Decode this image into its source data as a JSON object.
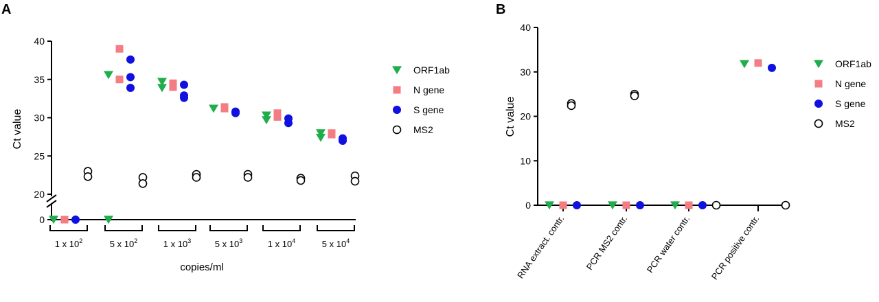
{
  "panels": {
    "a_label": "A",
    "b_label": "B"
  },
  "legend_entries": [
    "ORF1ab",
    "N gene",
    "S gene",
    "MS2"
  ],
  "colors": {
    "ORF1ab": "#1fae4b",
    "N gene": "#f47c83",
    "S gene": "#1010e0",
    "MS2": "#000000"
  },
  "chart_data": [
    {
      "type": "scatter",
      "panel": "A",
      "xlabel": "copies/ml",
      "ylabel": "Ct value",
      "categories": [
        {
          "base": "1 x 10",
          "exp": "2"
        },
        {
          "base": "5 x 10",
          "exp": "2"
        },
        {
          "base": "1 x 10",
          "exp": "3"
        },
        {
          "base": "5 x 10",
          "exp": "3"
        },
        {
          "base": "1 x 10",
          "exp": "4"
        },
        {
          "base": "5 x 10",
          "exp": "4"
        }
      ],
      "y_axis": {
        "broken": true,
        "lower_segment": {
          "ticks": [
            0
          ]
        },
        "upper_segment": {
          "range": [
            20,
            40
          ],
          "ticks": [
            20,
            25,
            30,
            35,
            40
          ]
        }
      },
      "series": [
        {
          "name": "ORF1ab",
          "marker": "triangle-down",
          "points": [
            [
              0,
              0
            ],
            [
              1,
              35.6
            ],
            [
              1,
              0
            ],
            [
              2,
              34.7
            ],
            [
              2,
              33.9
            ],
            [
              3,
              31.2
            ],
            [
              4,
              30.3
            ],
            [
              4,
              29.7
            ],
            [
              5,
              28.0
            ],
            [
              5,
              27.4
            ]
          ]
        },
        {
          "name": "N gene",
          "marker": "square",
          "points": [
            [
              0,
              0
            ],
            [
              1,
              39.0
            ],
            [
              1,
              35.0
            ],
            [
              2,
              34.5
            ],
            [
              2,
              34.0
            ],
            [
              3,
              31.4
            ],
            [
              3,
              31.2
            ],
            [
              4,
              30.6
            ],
            [
              4,
              30.1
            ],
            [
              5,
              28.0
            ],
            [
              5,
              27.8
            ]
          ]
        },
        {
          "name": "S gene",
          "marker": "circle",
          "points": [
            [
              0,
              0
            ],
            [
              1,
              37.6
            ],
            [
              1,
              35.3
            ],
            [
              1,
              33.9
            ],
            [
              2,
              34.3
            ],
            [
              2,
              32.9
            ],
            [
              2,
              32.6
            ],
            [
              3,
              30.8
            ],
            [
              3,
              30.6
            ],
            [
              4,
              29.9
            ],
            [
              4,
              29.3
            ],
            [
              5,
              27.3
            ],
            [
              5,
              27.0
            ]
          ]
        },
        {
          "name": "MS2",
          "marker": "open-circle",
          "points": [
            [
              0,
              23.0
            ],
            [
              0,
              22.3
            ],
            [
              1,
              22.2
            ],
            [
              1,
              21.4
            ],
            [
              2,
              22.6
            ],
            [
              2,
              22.2
            ],
            [
              3,
              22.6
            ],
            [
              3,
              22.2
            ],
            [
              4,
              22.1
            ],
            [
              4,
              21.8
            ],
            [
              5,
              22.4
            ],
            [
              5,
              21.7
            ]
          ]
        }
      ]
    },
    {
      "type": "scatter",
      "panel": "B",
      "ylabel": "Ct value",
      "categories": [
        "RNA extract. contr.",
        "PCR MS2 contr.",
        "PCR water contr.",
        "PCR positive contr."
      ],
      "ylim": [
        0,
        40
      ],
      "y_ticks": [
        0,
        10,
        20,
        30,
        40
      ],
      "series": [
        {
          "name": "ORF1ab",
          "marker": "triangle-down",
          "points": [
            [
              0,
              0
            ],
            [
              1,
              0
            ],
            [
              2,
              0
            ],
            [
              3,
              31.8
            ]
          ]
        },
        {
          "name": "N gene",
          "marker": "square",
          "points": [
            [
              0,
              0
            ],
            [
              1,
              0
            ],
            [
              2,
              0
            ],
            [
              3,
              32.0
            ]
          ]
        },
        {
          "name": "S gene",
          "marker": "circle",
          "points": [
            [
              0,
              0
            ],
            [
              1,
              0
            ],
            [
              2,
              0
            ],
            [
              3,
              30.9
            ]
          ]
        },
        {
          "name": "MS2",
          "marker": "open-circle",
          "points": [
            [
              0,
              22.9
            ],
            [
              0,
              22.4
            ],
            [
              1,
              25.0
            ],
            [
              1,
              24.6
            ],
            [
              2,
              0
            ],
            [
              3,
              0
            ]
          ]
        }
      ]
    }
  ]
}
